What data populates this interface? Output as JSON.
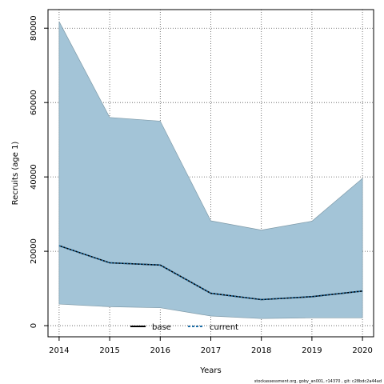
{
  "chart_data": {
    "type": "line",
    "title": "",
    "xlabel": "Years",
    "ylabel": "Recruits (age 1)",
    "x": [
      2014,
      2015,
      2016,
      2017,
      2018,
      2019,
      2020
    ],
    "x_ticks": [
      "2014",
      "2015",
      "2016",
      "2017",
      "2018",
      "2019",
      "2020"
    ],
    "y_ticks": [
      "0",
      "20000",
      "40000",
      "60000",
      "80000"
    ],
    "xlim": [
      2013.78,
      2020.22
    ],
    "ylim": [
      -3000,
      85000
    ],
    "grid": true,
    "series": [
      {
        "name": "current",
        "values": [
          21500,
          16900,
          16300,
          8700,
          7000,
          7800,
          9300
        ],
        "lower": [
          5800,
          5100,
          4800,
          2600,
          1900,
          2100,
          2100
        ],
        "upper": [
          81800,
          56000,
          55000,
          28200,
          25700,
          28100,
          39600
        ],
        "color": "#000000",
        "dot_color": "#1e6fa8",
        "band_color": "#a3c4d7",
        "band_edge": "#7f9aa8"
      }
    ],
    "legend": {
      "placement": "bottom-center",
      "entries": [
        "base",
        "current"
      ]
    },
    "footer": "stockassessment.org, goby_an001, r14370 , git: c28bdc2a44ad"
  }
}
